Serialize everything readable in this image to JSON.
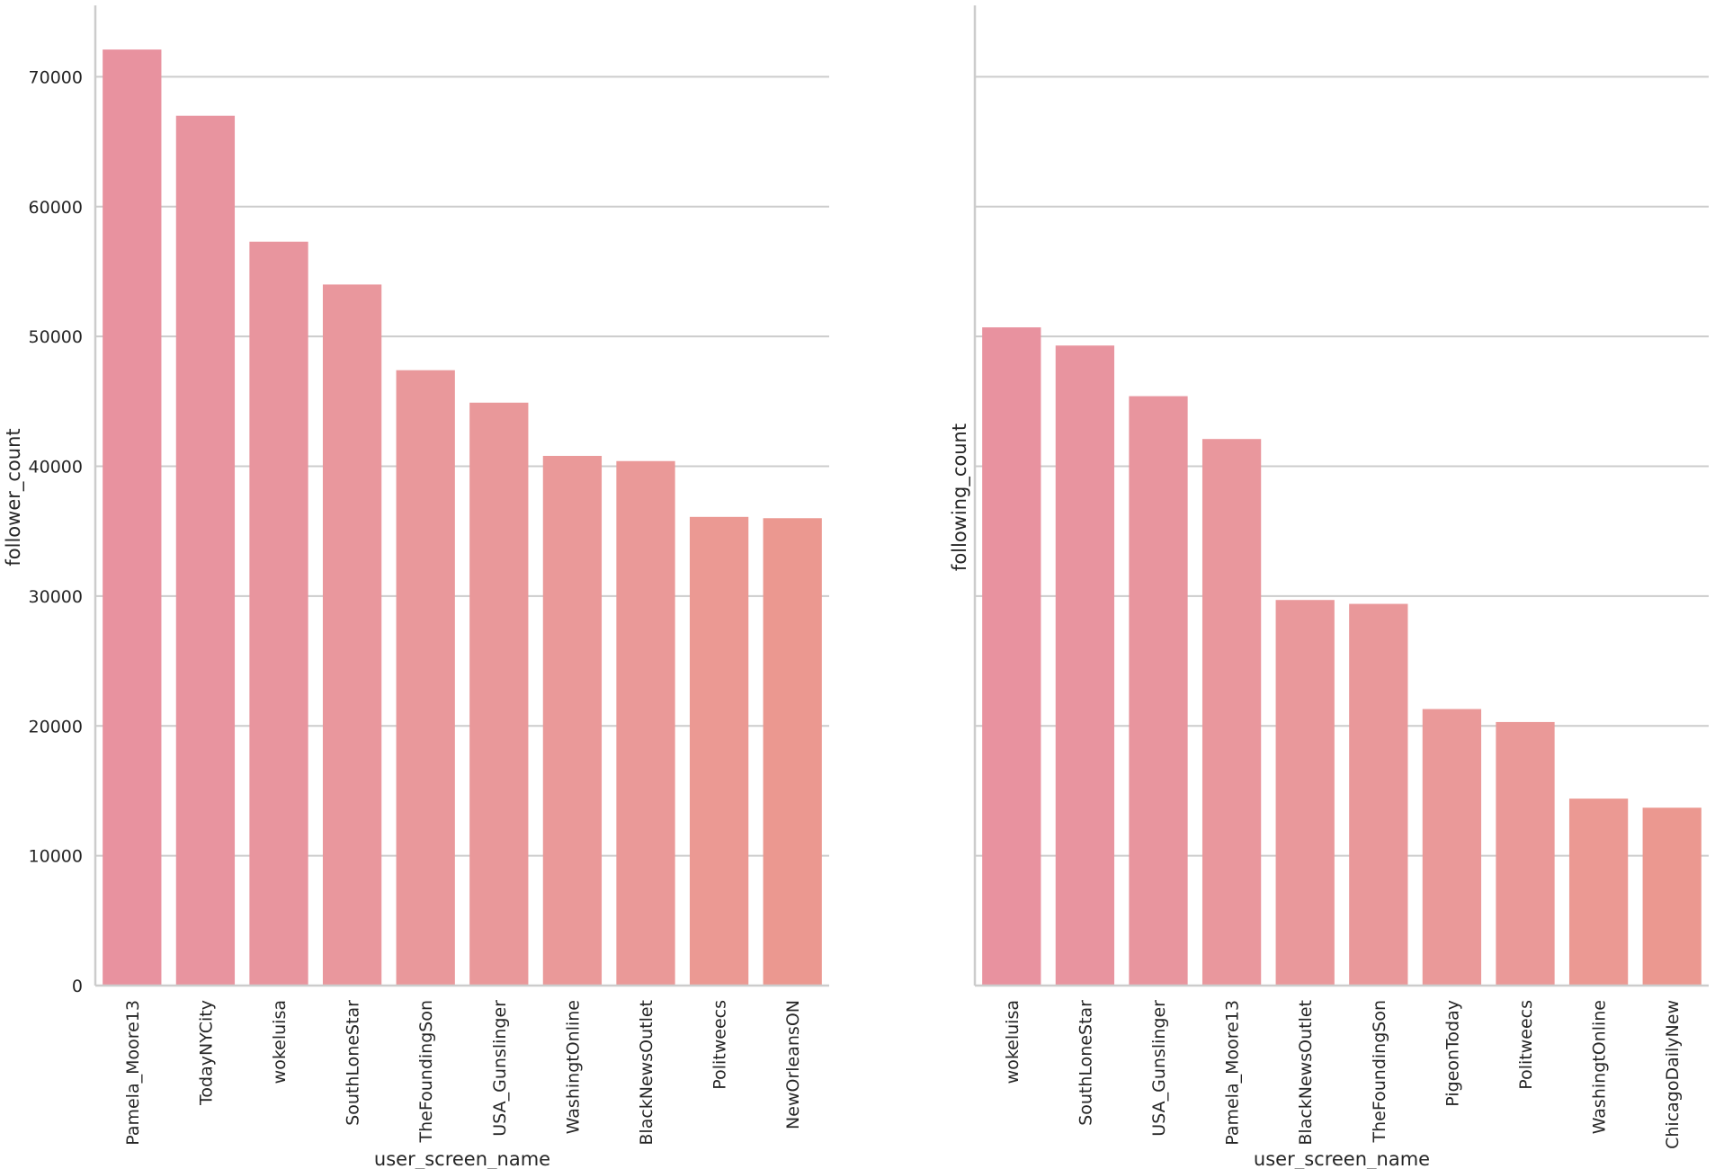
{
  "chart_data": [
    {
      "type": "bar",
      "title": "",
      "xlabel": "user_screen_name",
      "ylabel": "follower_count",
      "ylim": [
        0,
        75500
      ],
      "yticks": [
        0,
        10000,
        20000,
        30000,
        40000,
        50000,
        60000,
        70000
      ],
      "grid": "y",
      "categories": [
        "Pamela_Moore13",
        "TodayNYCity",
        "wokeluisa",
        "SouthLoneStar",
        "TheFoundingSon",
        "USA_Gunslinger",
        "WashingtOnline",
        "BlackNewsOutlet",
        "Politweecs",
        "NewOrleansON"
      ],
      "values": [
        72100,
        67000,
        57300,
        54000,
        47400,
        44900,
        40800,
        40400,
        36100,
        36000
      ],
      "colors": [
        "#e8929f",
        "#e8949f",
        "#e8959e",
        "#e9979d",
        "#e9989b",
        "#e9989a",
        "#ea9999",
        "#ea9998",
        "#eb9993",
        "#eb9890"
      ]
    },
    {
      "type": "bar",
      "title": "",
      "xlabel": "user_screen_name",
      "ylabel": "following_count",
      "ylim": [
        0,
        75500
      ],
      "grid": "y",
      "categories": [
        "wokeluisa",
        "SouthLoneStar",
        "USA_Gunslinger",
        "Pamela_Moore13",
        "BlackNewsOutlet",
        "TheFoundingSon",
        "PigeonToday",
        "Politweecs",
        "WashingtOnline",
        "ChicagoDailyNew"
      ],
      "values": [
        50700,
        49300,
        45400,
        42100,
        29700,
        29400,
        21300,
        20300,
        14400,
        13700
      ],
      "colors": [
        "#e8929f",
        "#e8949f",
        "#e8959e",
        "#e9979d",
        "#e9989b",
        "#e9989a",
        "#ea9999",
        "#ea9998",
        "#eb9993",
        "#eb9890"
      ]
    }
  ]
}
